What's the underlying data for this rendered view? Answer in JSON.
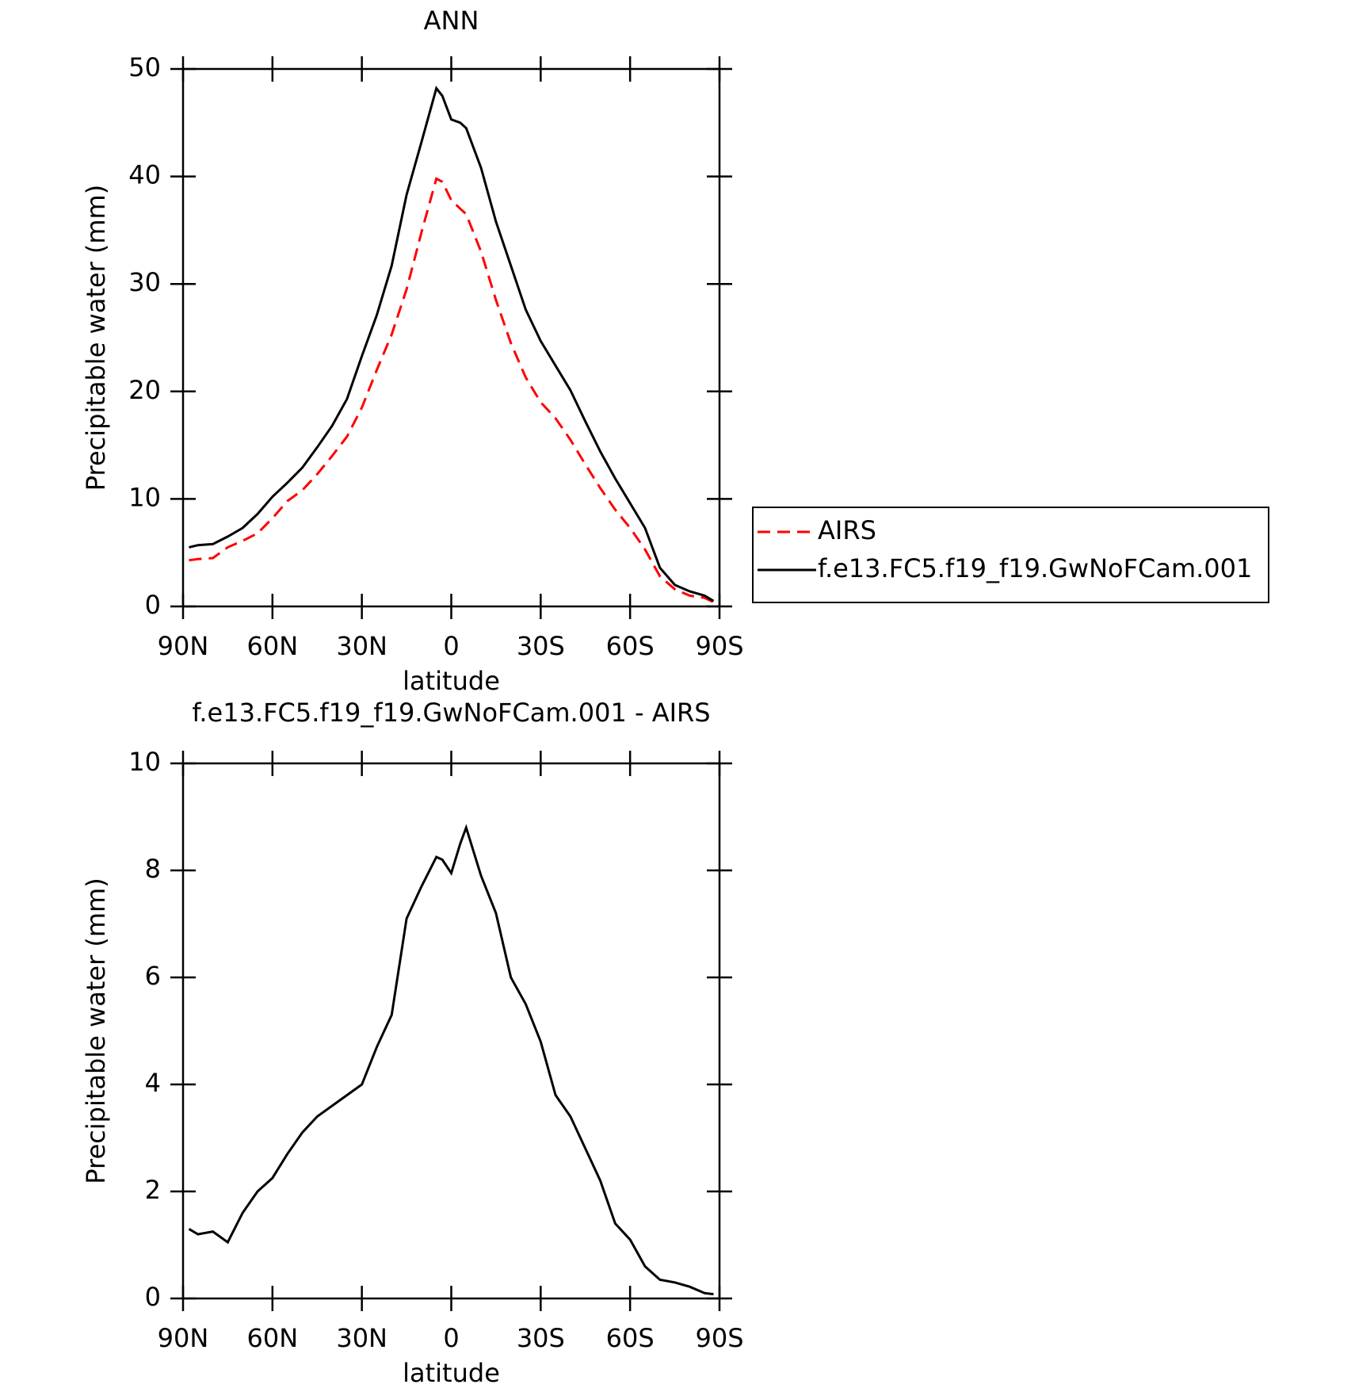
{
  "chart_data": [
    {
      "type": "line",
      "title": "ANN",
      "xlabel": "latitude",
      "ylabel": "Precipitable water (mm)",
      "x": [
        88,
        85,
        80,
        75,
        70,
        65,
        60,
        55,
        50,
        45,
        40,
        35,
        30,
        25,
        20,
        15,
        10,
        5,
        3,
        0,
        -3,
        -5,
        -10,
        -15,
        -20,
        -25,
        -30,
        -35,
        -40,
        -45,
        -50,
        -55,
        -60,
        -65,
        -70,
        -75,
        -80,
        -85,
        -88
      ],
      "series": [
        {
          "name": "AIRS",
          "color": "#ff0000",
          "style": "dashed",
          "values": [
            4.3,
            4.4,
            4.5,
            5.5,
            6.1,
            6.8,
            8.2,
            9.8,
            10.8,
            12.3,
            14.0,
            15.8,
            18.5,
            22,
            25.3,
            29.5,
            34.8,
            39.8,
            39.5,
            37.8,
            37,
            36.5,
            33,
            28.5,
            24.5,
            21.3,
            19,
            17.5,
            15.5,
            13.2,
            11.0,
            9.0,
            7.3,
            5.3,
            2.8,
            1.6,
            1.0,
            0.8,
            0.4
          ]
        },
        {
          "name": "f.e13.FC5.f19_f19.GwNoFCam.001",
          "color": "#000000",
          "style": "solid",
          "values": [
            5.5,
            5.7,
            5.8,
            6.5,
            7.3,
            8.6,
            10.2,
            11.5,
            12.9,
            14.8,
            16.8,
            19.3,
            23.3,
            27.1,
            31.7,
            38.3,
            43.2,
            48.2,
            47.5,
            45.3,
            45.0,
            44.5,
            40.8,
            35.8,
            31.7,
            27.6,
            24.7,
            22.4,
            20.1,
            17.2,
            14.4,
            11.9,
            9.6,
            7.3,
            3.6,
            2.0,
            1.4,
            1.0,
            0.5
          ]
        }
      ],
      "xlim": [
        90,
        -90
      ],
      "xticks": [
        {
          "value": 90,
          "label": "90N"
        },
        {
          "value": 60,
          "label": "60N"
        },
        {
          "value": 30,
          "label": "30N"
        },
        0,
        {
          "value": -30,
          "label": "30S"
        },
        {
          "value": -60,
          "label": "60S"
        },
        {
          "value": -90,
          "label": "90S"
        }
      ],
      "ylim": [
        0,
        50
      ],
      "yticks": [
        0,
        10,
        20,
        30,
        40,
        50
      ],
      "legend": "right"
    },
    {
      "type": "line",
      "title": "f.e13.FC5.f19_f19.GwNoFCam.001 - AIRS",
      "xlabel": "latitude",
      "ylabel": "Precipitable water (mm)",
      "x": [
        88,
        85,
        80,
        75,
        70,
        65,
        60,
        55,
        50,
        45,
        40,
        35,
        30,
        25,
        20,
        15,
        10,
        5,
        3,
        0,
        -3,
        -5,
        -10,
        -15,
        -20,
        -25,
        -30,
        -35,
        -40,
        -45,
        -50,
        -55,
        -60,
        -65,
        -70,
        -75,
        -80,
        -85,
        -88
      ],
      "series": [
        {
          "color": "#000000",
          "style": "solid",
          "values": [
            1.3,
            1.2,
            1.25,
            1.05,
            1.6,
            2.0,
            2.25,
            2.7,
            3.1,
            3.4,
            3.6,
            3.8,
            4.0,
            4.7,
            5.3,
            7.1,
            7.7,
            8.25,
            8.2,
            7.95,
            8.5,
            8.8,
            7.9,
            7.2,
            6.0,
            5.5,
            4.8,
            3.8,
            3.4,
            2.8,
            2.2,
            1.4,
            1.1,
            0.6,
            0.35,
            0.3,
            0.22,
            0.1,
            0.08
          ]
        }
      ],
      "xlim": [
        90,
        -90
      ],
      "xticks": [
        {
          "value": 90,
          "label": "90N"
        },
        {
          "value": 60,
          "label": "60N"
        },
        {
          "value": 30,
          "label": "30N"
        },
        0,
        {
          "value": -30,
          "label": "30S"
        },
        {
          "value": -60,
          "label": "60S"
        },
        {
          "value": -90,
          "label": "90S"
        }
      ],
      "ylim": [
        0,
        10
      ],
      "yticks": [
        0,
        2,
        4,
        6,
        8,
        10
      ]
    }
  ]
}
